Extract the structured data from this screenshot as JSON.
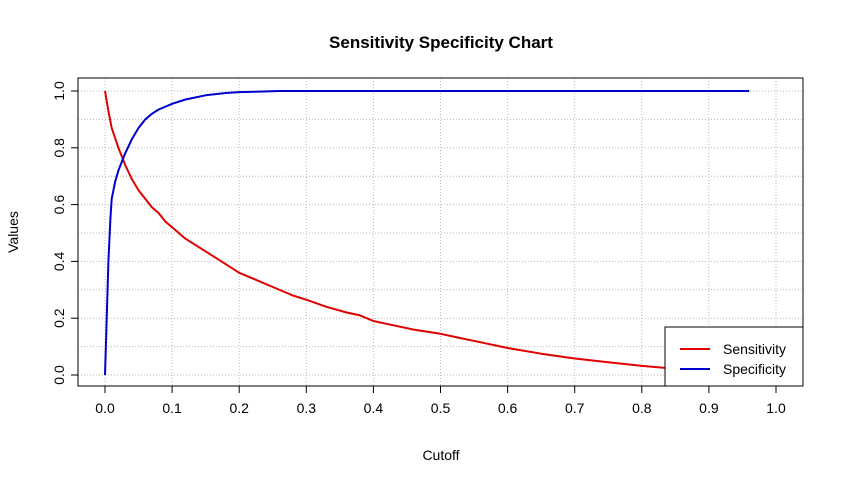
{
  "chart_data": {
    "type": "line",
    "title": "Sensitivity Specificity Chart",
    "xlabel": "Cutoff",
    "ylabel": "Values",
    "xlim": [
      0,
      1.0
    ],
    "ylim": [
      0,
      1.0
    ],
    "x_ticks": [
      "0.0",
      "0.1",
      "0.2",
      "0.3",
      "0.4",
      "0.5",
      "0.6",
      "0.7",
      "0.8",
      "0.9",
      "1.0"
    ],
    "y_ticks": [
      "0.0",
      "0.2",
      "0.4",
      "0.6",
      "0.8",
      "1.0"
    ],
    "grid": true,
    "legend_position": "bottom-right",
    "series": [
      {
        "name": "Sensitivity",
        "color": "#e00000",
        "x": [
          0.0,
          0.005,
          0.01,
          0.02,
          0.03,
          0.04,
          0.05,
          0.06,
          0.07,
          0.08,
          0.09,
          0.1,
          0.12,
          0.14,
          0.16,
          0.18,
          0.2,
          0.22,
          0.25,
          0.28,
          0.3,
          0.33,
          0.36,
          0.38,
          0.4,
          0.43,
          0.46,
          0.5,
          0.53,
          0.56,
          0.6,
          0.65,
          0.7,
          0.75,
          0.8,
          0.85,
          0.9,
          0.96
        ],
        "y": [
          1.0,
          0.93,
          0.87,
          0.8,
          0.74,
          0.69,
          0.65,
          0.62,
          0.59,
          0.57,
          0.54,
          0.52,
          0.48,
          0.45,
          0.42,
          0.39,
          0.36,
          0.34,
          0.31,
          0.28,
          0.265,
          0.24,
          0.22,
          0.21,
          0.19,
          0.175,
          0.16,
          0.145,
          0.13,
          0.115,
          0.095,
          0.075,
          0.058,
          0.045,
          0.032,
          0.022,
          0.012,
          0.003
        ]
      },
      {
        "name": "Specificity",
        "color": "#0000cc",
        "x": [
          0.0,
          0.002,
          0.005,
          0.008,
          0.01,
          0.015,
          0.02,
          0.03,
          0.04,
          0.05,
          0.06,
          0.07,
          0.08,
          0.1,
          0.12,
          0.15,
          0.18,
          0.2,
          0.23,
          0.26,
          0.3,
          0.4,
          0.5,
          0.6,
          0.7,
          0.8,
          0.9,
          0.96
        ],
        "y": [
          0.0,
          0.15,
          0.4,
          0.55,
          0.62,
          0.68,
          0.72,
          0.78,
          0.83,
          0.87,
          0.9,
          0.92,
          0.935,
          0.955,
          0.97,
          0.985,
          0.993,
          0.996,
          0.998,
          1.0,
          1.0,
          1.0,
          1.0,
          1.0,
          1.0,
          1.0,
          1.0,
          1.0
        ]
      }
    ]
  }
}
